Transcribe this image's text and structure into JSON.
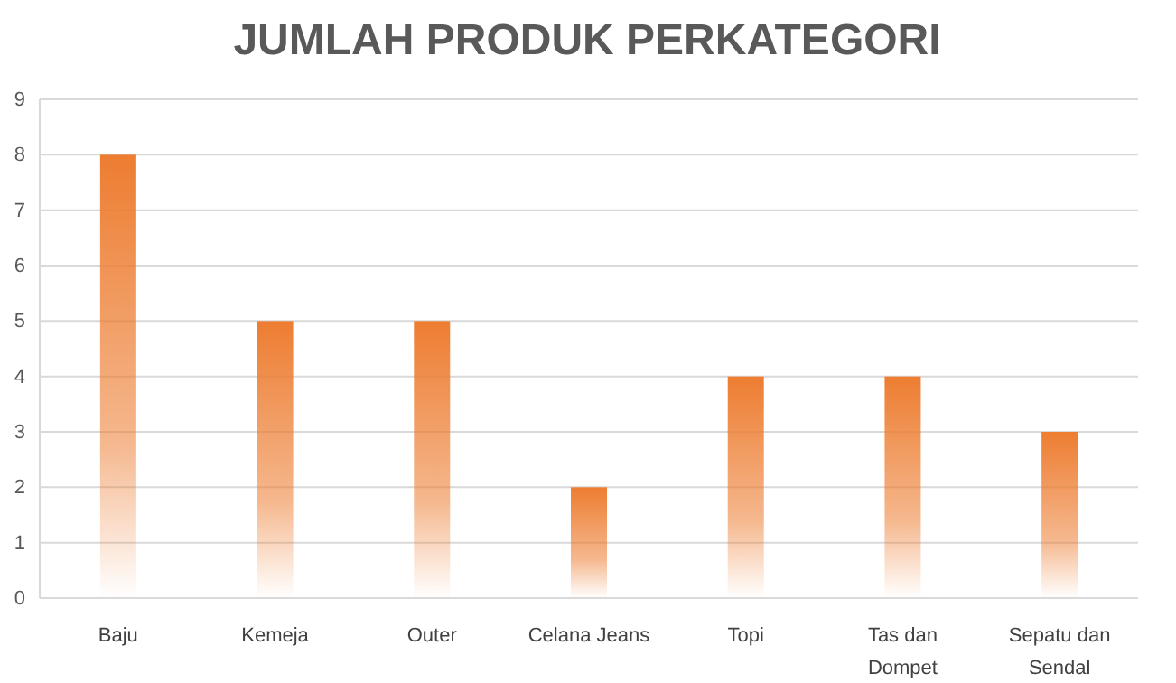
{
  "chart_data": {
    "type": "bar",
    "title": "JUMLAH PRODUK PERKATEGORI",
    "categories": [
      "Baju",
      "Kemeja",
      "Outer",
      "Celana Jeans",
      "Topi",
      "Tas dan Dompet",
      "Sepatu dan Sendal"
    ],
    "values": [
      8,
      5,
      5,
      2,
      4,
      4,
      3
    ],
    "color": "#ed7d31",
    "ylim": [
      0,
      9
    ],
    "yticks": [
      0,
      1,
      2,
      3,
      4,
      5,
      6,
      7,
      8,
      9
    ],
    "grid": "y"
  }
}
